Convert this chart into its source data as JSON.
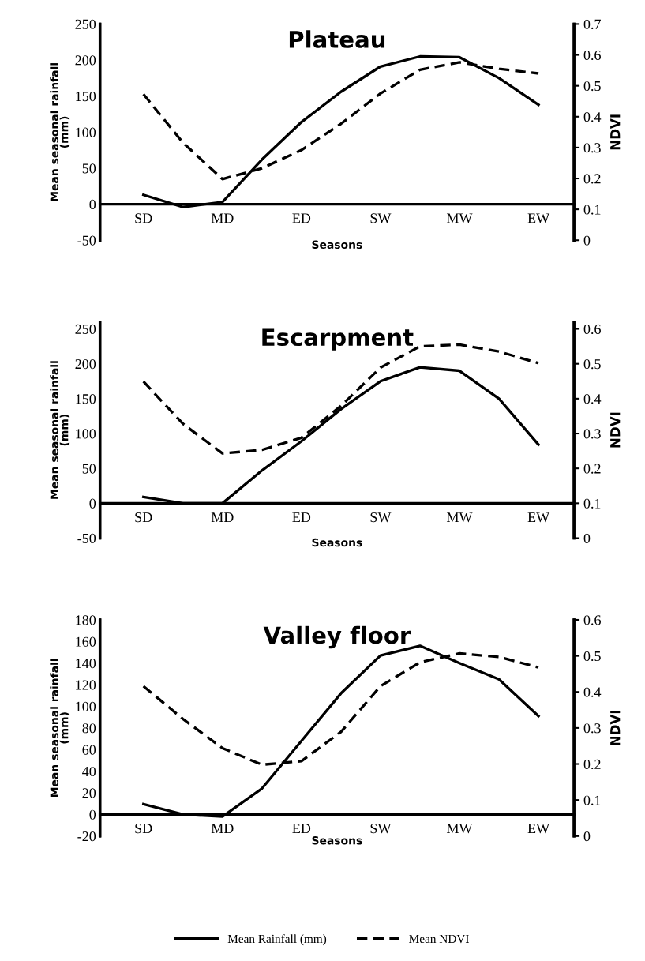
{
  "chart_data": [
    {
      "type": "line",
      "title": "Plateau",
      "xlabel": "Seasons",
      "ylabel": "Mean seasonal rainfall\n(mm)",
      "y2label": "NDVI",
      "categories": [
        "SD",
        null,
        "MD",
        null,
        "ED",
        null,
        "SW",
        null,
        "MW",
        null,
        "EW"
      ],
      "series": [
        {
          "name": "Mean Rainfall (mm)",
          "color": "#000000",
          "line_style": "solid",
          "values": [
            13,
            -4,
            3,
            62,
            114,
            156,
            191,
            205,
            204,
            175,
            138
          ]
        },
        {
          "name": "Mean NDVI",
          "color": "#000000",
          "line_style": "dashed",
          "axis": "y2",
          "values": [
            0.473,
            0.316,
            0.198,
            0.233,
            0.292,
            0.377,
            0.475,
            0.552,
            0.576,
            0.555,
            0.54
          ]
        }
      ],
      "ylim": [
        -50,
        250
      ],
      "yticks": [
        -50,
        0,
        50,
        100,
        150,
        200,
        250
      ],
      "y2lim": [
        0,
        0.7
      ],
      "y2ticks": [
        0,
        0.1,
        0.2,
        0.3,
        0.4,
        0.5,
        0.6,
        0.7
      ],
      "grid": false,
      "legend": "bottom"
    },
    {
      "type": "line",
      "title": "Escarpment",
      "xlabel": "Seasons",
      "ylabel": "Mean seasonal rainfall\n(mm)",
      "y2label": "NDVI",
      "categories": [
        "SD",
        null,
        "MD",
        null,
        "ED",
        null,
        "SW",
        null,
        "MW",
        null,
        "EW"
      ],
      "series": [
        {
          "color": "#000000",
          "line_style": "solid",
          "values": [
            9,
            0,
            0,
            47,
            89,
            135,
            175,
            195,
            190,
            150,
            84
          ]
        },
        {
          "color": "#000000",
          "line_style": "dashed",
          "axis": "y2",
          "values": [
            0.449,
            0.328,
            0.243,
            0.253,
            0.288,
            0.379,
            0.489,
            0.55,
            0.555,
            0.535,
            0.502
          ]
        }
      ],
      "ylim": [
        -50,
        260
      ],
      "yticks": [
        -50,
        0,
        50,
        100,
        150,
        200,
        250
      ],
      "y2lim": [
        0,
        0.62
      ],
      "y2ticks": [
        0,
        0.1,
        0.2,
        0.3,
        0.4,
        0.5,
        0.6
      ],
      "grid": false
    },
    {
      "type": "line",
      "title": "Valley floor",
      "xlabel": "Seasons",
      "ylabel": "Mean seasonal rainfall\n(mm)",
      "y2label": "NDVI",
      "categories": [
        "SD",
        null,
        "MD",
        null,
        "ED",
        null,
        "SW",
        null,
        "MW",
        null,
        "EW"
      ],
      "series": [
        {
          "color": "#000000",
          "line_style": "solid",
          "values": [
            9.5,
            0,
            -2,
            24,
            68,
            112,
            147,
            156,
            140,
            125,
            91
          ]
        },
        {
          "color": "#000000",
          "line_style": "dashed",
          "axis": "y2",
          "values": [
            0.416,
            0.325,
            0.244,
            0.198,
            0.208,
            0.289,
            0.416,
            0.482,
            0.507,
            0.497,
            0.468
          ]
        }
      ],
      "ylim": [
        -20,
        180
      ],
      "yticks": [
        -20,
        0,
        20,
        40,
        60,
        80,
        100,
        120,
        140,
        160,
        180
      ],
      "y2lim": [
        0,
        0.6
      ],
      "y2ticks": [
        0,
        0.1,
        0.2,
        0.3,
        0.4,
        0.5,
        0.6
      ],
      "grid": false
    }
  ]
}
